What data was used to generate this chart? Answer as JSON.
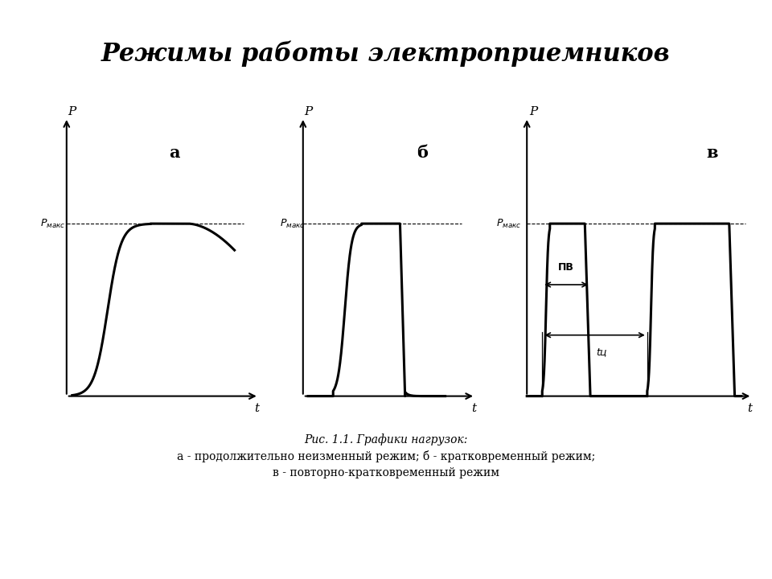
{
  "title": "Режимы работы электроприемников",
  "title_fontsize": 22,
  "title_style": "italic",
  "title_weight": "bold",
  "background_color": "#ffffff",
  "caption_line1": "Рис. 1.1. Графики нагрузок:",
  "caption_line2": "а - продолжительно неизменный режим; б - кратковременный режим;",
  "caption_line3": "в - повторно-кратковременный режим",
  "label_a": "а",
  "label_b": "б",
  "label_v": "в",
  "label_PV": "ПВ",
  "label_tc": "tц",
  "pmax_label": "Pмакс"
}
